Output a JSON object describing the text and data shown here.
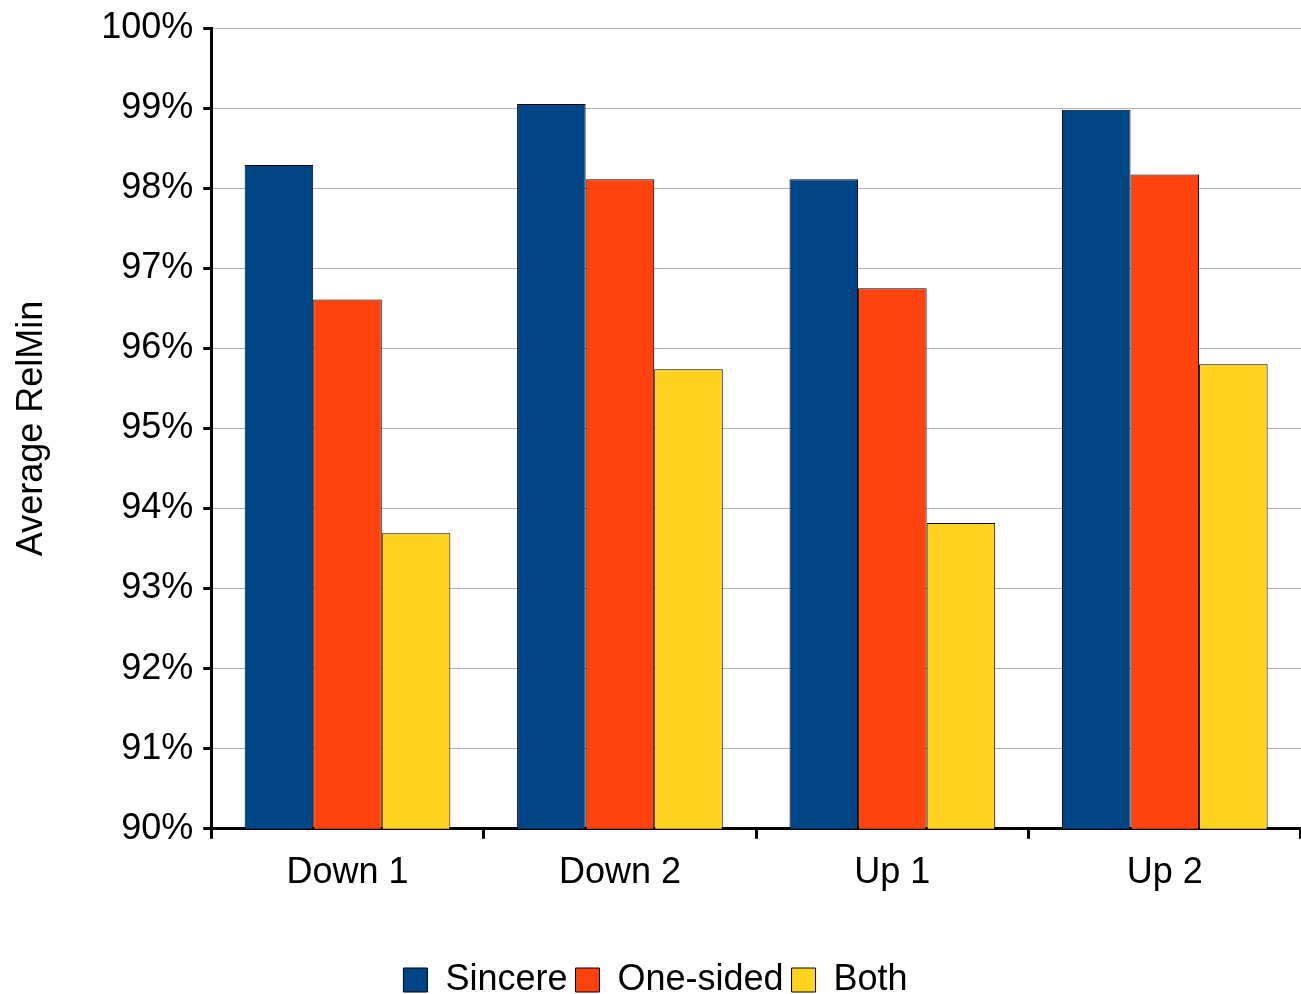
{
  "chart_data": {
    "type": "bar",
    "ylabel": "Average RelMin",
    "categories": [
      "Down 1",
      "Down 2",
      "Up 1",
      "Up 2"
    ],
    "series": [
      {
        "name": "Sincere",
        "color": "#004586",
        "values": [
          98.29,
          99.05,
          98.11,
          98.98
        ]
      },
      {
        "name": "One-sided",
        "color": "#ff420e",
        "values": [
          96.61,
          98.11,
          96.75,
          98.17
        ]
      },
      {
        "name": "Both",
        "color": "#ffd320",
        "values": [
          93.69,
          95.74,
          93.82,
          95.8
        ]
      }
    ],
    "ylim": [
      90,
      100
    ],
    "yticks": [
      {
        "value": 90,
        "label": "90%"
      },
      {
        "value": 91,
        "label": "91%"
      },
      {
        "value": 92,
        "label": "92%"
      },
      {
        "value": 93,
        "label": "93%"
      },
      {
        "value": 94,
        "label": "94%"
      },
      {
        "value": 95,
        "label": "95%"
      },
      {
        "value": 96,
        "label": "96%"
      },
      {
        "value": 97,
        "label": "97%"
      },
      {
        "value": 98,
        "label": "98%"
      },
      {
        "value": 99,
        "label": "99%"
      },
      {
        "value": 100,
        "label": "100%"
      }
    ],
    "grid": "y",
    "legend": "bottom"
  }
}
